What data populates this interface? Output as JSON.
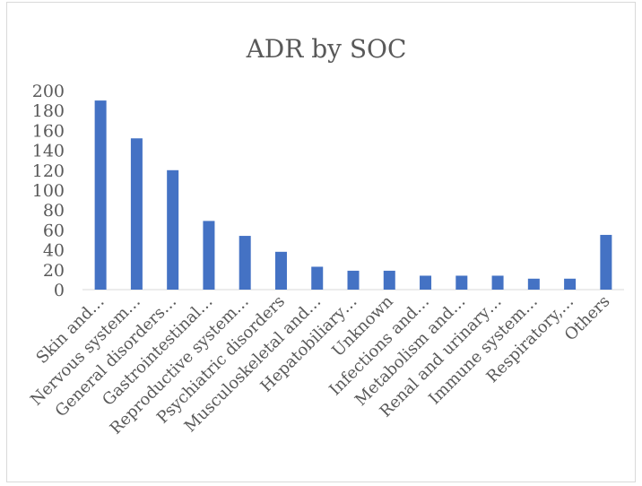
{
  "chart_data": {
    "type": "bar",
    "title": "ADR by SOC",
    "xlabel": "",
    "ylabel": "",
    "ylim": [
      0,
      200
    ],
    "yticks": [
      0,
      20,
      40,
      60,
      80,
      100,
      120,
      140,
      160,
      180,
      200
    ],
    "grid": false,
    "legend": "none",
    "bar_color": "#4472c4",
    "categories": [
      "Skin and…",
      "Nervous system…",
      "General disorders…",
      "Gastrointestinal…",
      "Reproductive system…",
      "Psychiatric disorders",
      "Musculoskeletal and…",
      "Hepatobiliary…",
      "Unknown",
      "Infections and…",
      "Metabolism and…",
      "Renal and urinary…",
      "Immune system…",
      "Respiratory,…",
      "Others"
    ],
    "values": [
      190,
      152,
      120,
      69,
      54,
      38,
      23,
      19,
      19,
      14,
      14,
      14,
      11,
      11,
      55
    ]
  }
}
